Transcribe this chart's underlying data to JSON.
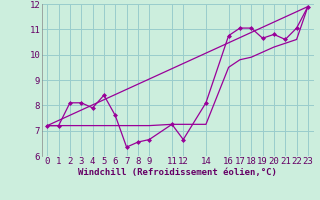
{
  "background_color": "#cceedd",
  "line_color": "#990099",
  "grid_color": "#99cccc",
  "xlabel": "Windchill (Refroidissement éolien,°C)",
  "xlabel_fontsize": 6.5,
  "tick_fontsize": 6.5,
  "ylim": [
    6,
    12
  ],
  "xlim": [
    -0.5,
    23.5
  ],
  "yticks": [
    6,
    7,
    8,
    9,
    10,
    11,
    12
  ],
  "xtick_positions": [
    0,
    1,
    2,
    3,
    4,
    5,
    6,
    7,
    8,
    9,
    11,
    12,
    14,
    16,
    17,
    18,
    19,
    20,
    21,
    22,
    23
  ],
  "xtick_labels": [
    "0",
    "1",
    "2",
    "3",
    "4",
    "5",
    "6",
    "7",
    "8",
    "9",
    "11",
    "12",
    "14",
    "16",
    "17",
    "18",
    "19",
    "20",
    "21",
    "22",
    "23"
  ],
  "series1_x": [
    0,
    1,
    2,
    3,
    4,
    5,
    6,
    7,
    8,
    9,
    11,
    12,
    14,
    16,
    17,
    18,
    19,
    20,
    21,
    22,
    23
  ],
  "series1_y": [
    7.2,
    7.2,
    8.1,
    8.1,
    7.9,
    8.4,
    7.6,
    6.35,
    6.55,
    6.65,
    7.25,
    6.65,
    8.1,
    10.75,
    11.05,
    11.05,
    10.65,
    10.8,
    10.6,
    11.05,
    11.9
  ],
  "series2_x": [
    0,
    23
  ],
  "series2_y": [
    7.2,
    11.9
  ],
  "series3_x": [
    0,
    1,
    2,
    3,
    4,
    5,
    6,
    7,
    8,
    9,
    11,
    12,
    14,
    16,
    17,
    18,
    19,
    20,
    21,
    22,
    23
  ],
  "series3_y": [
    7.2,
    7.2,
    7.2,
    7.2,
    7.2,
    7.2,
    7.2,
    7.2,
    7.2,
    7.2,
    7.25,
    7.25,
    7.25,
    9.5,
    9.8,
    9.9,
    10.1,
    10.3,
    10.45,
    10.6,
    11.9
  ]
}
